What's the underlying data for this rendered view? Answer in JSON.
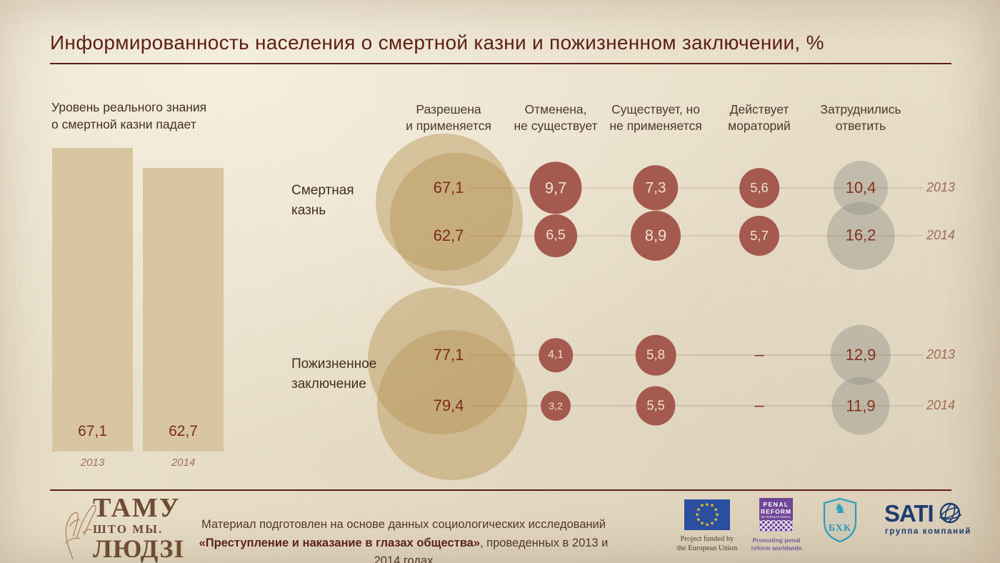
{
  "title": "Информированность населения о смертной казни и пожизненном заключении, %",
  "left_chart": {
    "heading": "Уровень реального знания\nо смертной казни падает",
    "bars": [
      {
        "year": "2013",
        "value": 67.1,
        "display": "67,1"
      },
      {
        "year": "2014",
        "value": 62.7,
        "display": "62,7"
      }
    ]
  },
  "chart_data": {
    "type": "bubble-matrix",
    "title": "Информированность населения о смертной казни и пожизненном заключении, %",
    "columns": [
      "Разрешена\nи применяется",
      "Отменена,\nне существует",
      "Существует, но\nне применяется",
      "Действует\nмораторий",
      "Затруднились\nответить"
    ],
    "rows": [
      {
        "label": "Смертная\nказнь",
        "years": [
          {
            "year": "2013",
            "values": [
              67.1,
              9.7,
              7.3,
              5.6,
              10.4
            ]
          },
          {
            "year": "2014",
            "values": [
              62.7,
              6.5,
              8.9,
              5.7,
              16.2
            ]
          }
        ]
      },
      {
        "label": "Пожизненное\nзаключение",
        "years": [
          {
            "year": "2013",
            "values": [
              77.1,
              4.1,
              5.8,
              null,
              12.9
            ]
          },
          {
            "year": "2014",
            "values": [
              79.4,
              3.2,
              5.5,
              null,
              11.9
            ]
          }
        ]
      }
    ],
    "no_data_symbol": "–",
    "colors": {
      "background": "#e9dfc9",
      "accent_dark_red": "#5d1f15",
      "tan_circle": "#d2bd96",
      "red_bubble": "#a45a4f",
      "gray_bubble": "#c3bdad",
      "value_text_dark": "#7b2b1b",
      "bubble_text_light": "#efe2cc"
    }
  },
  "footer": {
    "wordmark": {
      "line1": "ТАМУ",
      "line2": "ШТО МЫ.",
      "line3": "ЛЮДЗІ"
    },
    "source_line1": "Материал подготовлен на основе данных социологических исследований",
    "source_bold": "«Преступление и наказание в глазах общества»",
    "source_rest": ", проведенных в 2013 и 2014 годах",
    "logos": {
      "eu": {
        "caption": "Project funded by\nthe European Union"
      },
      "pri": {
        "line1": "PENAL",
        "line2": "REFORM",
        "line3": "INTERNATIONAL",
        "caption": "Promoting penal\nreform worldwide"
      },
      "bhc": {
        "letters": "БХК"
      },
      "satio": {
        "name": "SATI",
        "caption": "группа компаний"
      }
    }
  }
}
